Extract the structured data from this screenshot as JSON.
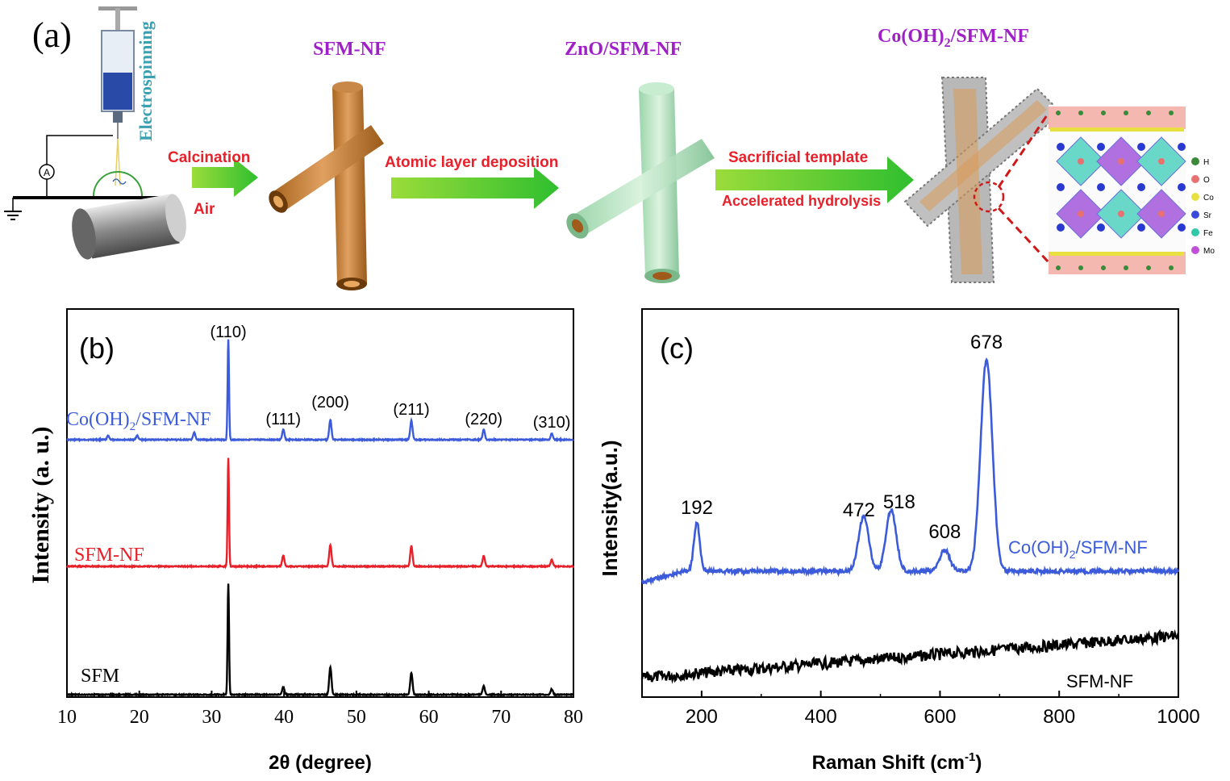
{
  "panel_a": {
    "label": "(a)",
    "electrospinning": "Electrospinning",
    "meter": "A",
    "step1_top": "Calcination",
    "step1_bottom": "Air",
    "step2": "Atomic layer deposition",
    "step3_top": "Sacrificial template",
    "step3_bottom": "Accelerated hydrolysis",
    "title_sfm": "SFM-NF",
    "title_zno": "ZnO/SFM-NF",
    "title_co_pre": "Co(OH)",
    "title_co_sub": "2",
    "title_co_post": "/SFM-NF",
    "legend": [
      {
        "label": "H",
        "color": "#3a8a3a"
      },
      {
        "label": "O",
        "color": "#e87070"
      },
      {
        "label": "Co",
        "color": "#e8e040"
      },
      {
        "label": "Sr",
        "color": "#3a4ad8"
      },
      {
        "label": "Fe",
        "color": "#30c8a8"
      },
      {
        "label": "Mo",
        "color": "#c050d8"
      }
    ]
  },
  "chart_data": [
    {
      "type": "line",
      "panel_label": "(b)",
      "xlabel": "2θ (degree)",
      "ylabel": "Intensity (a. u.)",
      "xlim": [
        10,
        80
      ],
      "xticks": [
        "10",
        "20",
        "30",
        "40",
        "50",
        "60",
        "70",
        "80"
      ],
      "series": [
        {
          "name_pre": "Co(OH)",
          "name_sub": "2",
          "name_post": "/SFM-NF",
          "color": "#3b5bdb",
          "peaks": [
            [
              15.7,
              0.04
            ],
            [
              19.7,
              0.04
            ],
            [
              27.6,
              0.07
            ],
            [
              32.3,
              1.0
            ],
            [
              39.9,
              0.1
            ],
            [
              46.4,
              0.2
            ],
            [
              57.6,
              0.19
            ],
            [
              67.6,
              0.1
            ],
            [
              77.0,
              0.06
            ]
          ]
        },
        {
          "name": "SFM-NF",
          "color": "#e8202a",
          "peaks": [
            [
              32.3,
              1.0
            ],
            [
              39.9,
              0.1
            ],
            [
              46.4,
              0.2
            ],
            [
              57.6,
              0.19
            ],
            [
              67.6,
              0.1
            ],
            [
              77.0,
              0.06
            ]
          ]
        },
        {
          "name": "SFM",
          "color": "#000000",
          "peaks": [
            [
              32.3,
              1.0
            ],
            [
              39.9,
              0.07
            ],
            [
              46.4,
              0.25
            ],
            [
              57.6,
              0.2
            ],
            [
              67.6,
              0.08
            ],
            [
              77.0,
              0.05
            ]
          ]
        }
      ],
      "annotations": [
        {
          "x": 32.3,
          "text": "(110)"
        },
        {
          "x": 39.9,
          "text": "(111)"
        },
        {
          "x": 46.4,
          "text": "(200)"
        },
        {
          "x": 57.6,
          "text": "(211)"
        },
        {
          "x": 67.6,
          "text": "(220)"
        },
        {
          "x": 77.0,
          "text": "(310)"
        }
      ]
    },
    {
      "type": "line",
      "panel_label": "(c)",
      "xlabel_pre": "Raman Shift (cm",
      "xlabel_sup": "-1",
      "xlabel_post": ")",
      "ylabel": "Intensity(a.u.)",
      "xlim": [
        100,
        1000
      ],
      "xticks": [
        "200",
        "400",
        "600",
        "800",
        "1000"
      ],
      "series": [
        {
          "name_pre": "Co(OH)",
          "name_sub": "2",
          "name_post": "/SFM-NF",
          "color": "#3b5bdb",
          "peaks": [
            [
              192,
              0.23
            ],
            [
              472,
              0.26
            ],
            [
              518,
              0.29
            ],
            [
              608,
              0.1
            ],
            [
              678,
              1.0
            ]
          ]
        },
        {
          "name": "SFM-NF",
          "color": "#000000",
          "trend": [
            0.0,
            0.12
          ]
        }
      ],
      "annotations": [
        {
          "x": 192,
          "text": "192"
        },
        {
          "x": 472,
          "text": "472"
        },
        {
          "x": 518,
          "text": "518"
        },
        {
          "x": 608,
          "text": "608"
        },
        {
          "x": 678,
          "text": "678"
        }
      ]
    }
  ]
}
